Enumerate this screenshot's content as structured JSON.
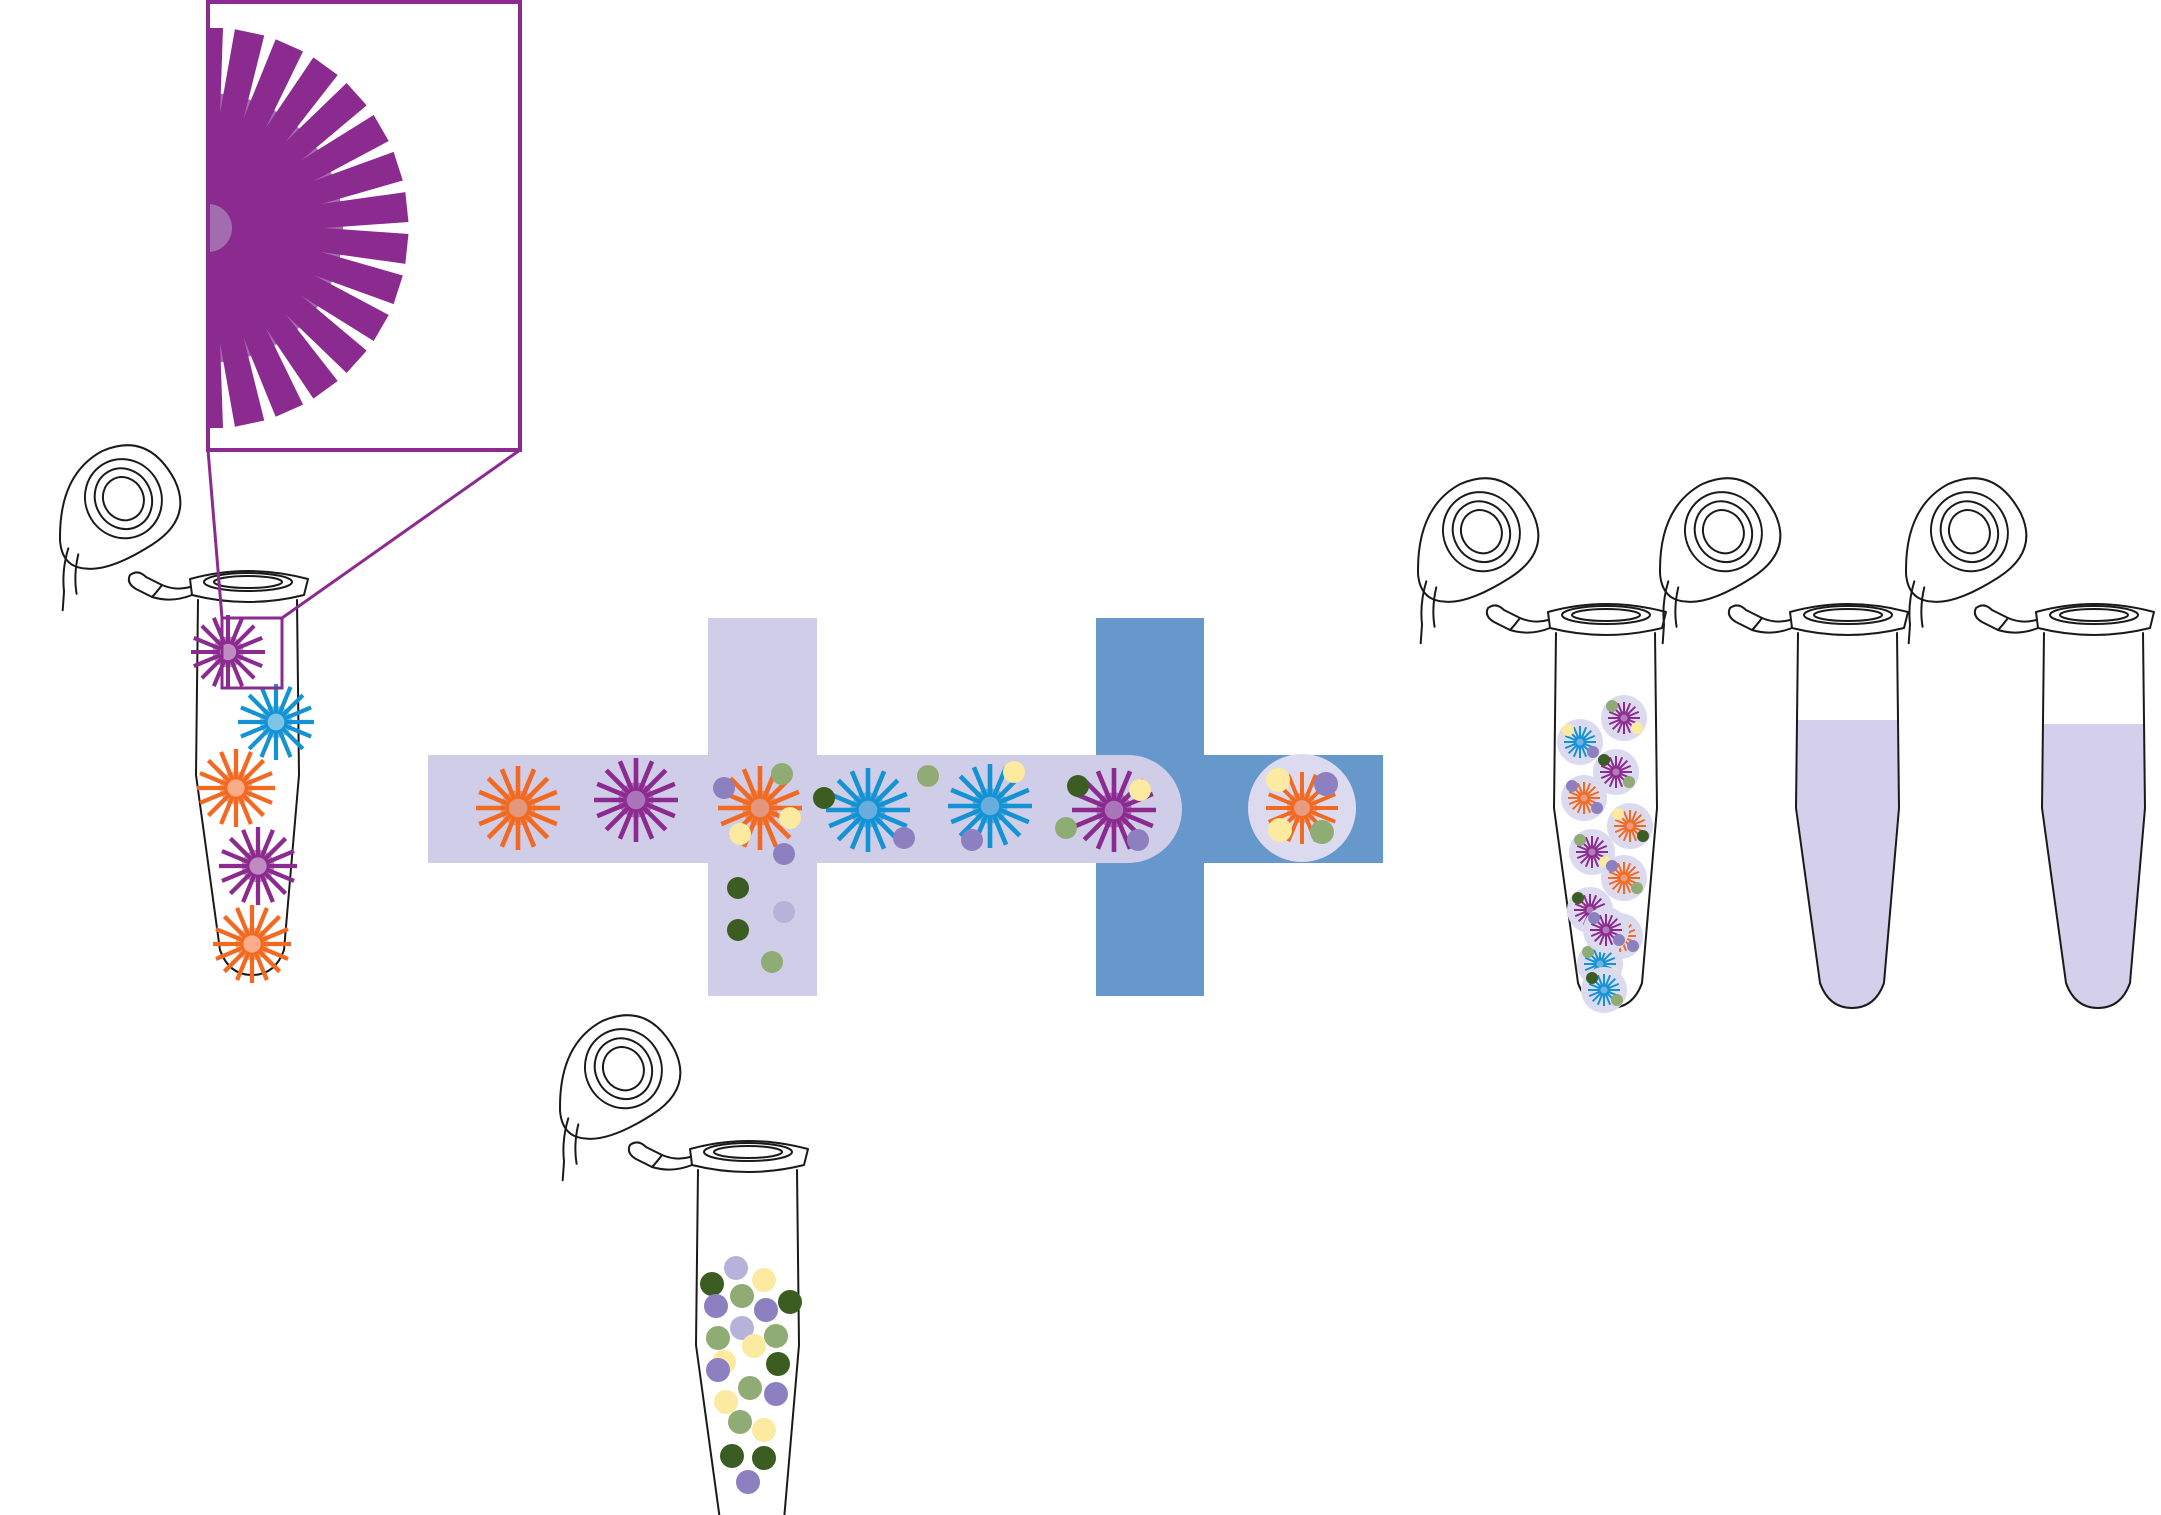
{
  "palette": {
    "purple": "#8c2b8f",
    "purple_core": "#a36cb0",
    "blue": "#1493d4",
    "orange": "#f26a22",
    "channel_light": "#cfcde8",
    "channel_oil": "#6698cc",
    "droplet": "#dcdaef",
    "liquid": "#d4cfea",
    "dark_green": "#3c5d22",
    "sage": "#8fac74",
    "yellow": "#fbeaa0",
    "lavender": "#8c80c0",
    "light_lavender": "#b6b2da",
    "outline": "#1a1a1a",
    "zoom_frame": "#8c2b8f"
  },
  "diagram": {
    "cell_tube": {
      "cells": [
        "purple",
        "blue",
        "orange",
        "purple",
        "orange"
      ]
    },
    "bead_tube": {
      "beads": [
        "dark_green",
        "sage",
        "yellow",
        "lavender",
        "light_lavender"
      ]
    },
    "channel_cells": [
      "orange",
      "purple",
      "orange",
      "blue",
      "blue",
      "purple"
    ],
    "encapsulated_droplet": {
      "cell": "orange"
    },
    "droplet_tube": {
      "droplet_count": 12
    },
    "output_tubes": [
      "emulsion",
      "liquid",
      "liquid"
    ]
  }
}
